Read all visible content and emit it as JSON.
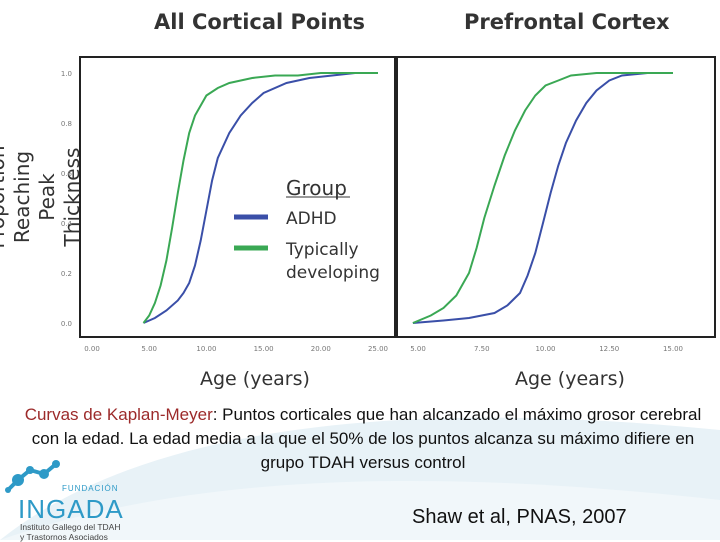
{
  "chart_data": [
    {
      "type": "line",
      "title": "All Cortical Points",
      "xlabel": "Age (years)",
      "ylabel": "Proportion Reaching Peak Thickness",
      "xlim": [
        0,
        25
      ],
      "ylim": [
        0,
        1
      ],
      "xticks": [
        "0.00",
        "5.00",
        "10.00",
        "15.00",
        "20.00",
        "25.00"
      ],
      "yticks": [
        "0.0",
        "0.2",
        "0.4",
        "0.6",
        "0.8",
        "1.0"
      ],
      "legend": {
        "title": "Group",
        "position": "center-right",
        "entries": [
          "ADHD",
          "Typically developing"
        ]
      },
      "series": [
        {
          "name": "ADHD",
          "color": "#3a4fa8",
          "x": [
            4.5,
            5.5,
            6.5,
            7.5,
            8.0,
            8.5,
            9.0,
            9.5,
            10.0,
            10.5,
            11.0,
            12.0,
            13.0,
            14.0,
            15.0,
            17.0,
            19.0,
            21.0,
            23.0,
            25.0
          ],
          "y": [
            0.0,
            0.02,
            0.05,
            0.09,
            0.12,
            0.16,
            0.23,
            0.33,
            0.45,
            0.57,
            0.66,
            0.76,
            0.83,
            0.88,
            0.92,
            0.96,
            0.98,
            0.99,
            1.0,
            1.0
          ]
        },
        {
          "name": "Typically developing",
          "color": "#3aa854",
          "x": [
            4.5,
            5.0,
            5.5,
            6.0,
            6.5,
            7.0,
            7.5,
            8.0,
            8.5,
            9.0,
            10.0,
            11.0,
            12.0,
            14.0,
            16.0,
            18.0,
            20.0,
            22.0,
            25.0
          ],
          "y": [
            0.0,
            0.03,
            0.08,
            0.15,
            0.25,
            0.38,
            0.52,
            0.65,
            0.76,
            0.83,
            0.91,
            0.94,
            0.96,
            0.98,
            0.99,
            0.99,
            1.0,
            1.0,
            1.0
          ]
        }
      ]
    },
    {
      "type": "line",
      "title": "Prefrontal Cortex",
      "xlabel": "Age (years)",
      "ylabel": "",
      "xlim": [
        5,
        15
      ],
      "ylim": [
        0,
        1
      ],
      "xticks": [
        "5.00",
        "7.50",
        "10.00",
        "12.50",
        "15.00"
      ],
      "series": [
        {
          "name": "ADHD",
          "color": "#3a4fa8",
          "x": [
            4.8,
            6.0,
            7.0,
            8.0,
            8.5,
            9.0,
            9.3,
            9.6,
            9.9,
            10.2,
            10.5,
            10.8,
            11.2,
            11.6,
            12.0,
            12.5,
            13.0,
            14.0,
            15.0
          ],
          "y": [
            0.0,
            0.01,
            0.02,
            0.04,
            0.07,
            0.12,
            0.19,
            0.28,
            0.4,
            0.52,
            0.63,
            0.72,
            0.81,
            0.88,
            0.93,
            0.97,
            0.99,
            1.0,
            1.0
          ]
        },
        {
          "name": "Typically developing",
          "color": "#3aa854",
          "x": [
            4.8,
            5.5,
            6.0,
            6.5,
            7.0,
            7.3,
            7.6,
            8.0,
            8.4,
            8.8,
            9.2,
            9.6,
            10.0,
            10.5,
            11.0,
            12.0,
            13.0,
            15.0
          ],
          "y": [
            0.0,
            0.03,
            0.06,
            0.11,
            0.2,
            0.3,
            0.42,
            0.55,
            0.67,
            0.77,
            0.85,
            0.91,
            0.95,
            0.97,
            0.99,
            1.0,
            1.0,
            1.0
          ]
        }
      ]
    }
  ],
  "caption": {
    "highlight": "Curvas de Kaplan-Meyer",
    "text": ":  Puntos corticales que han alcanzado el máximo grosor cerebral con la edad. La edad media a la que el 50% de los puntos alcanza su máximo difiere en grupo TDAH versus control"
  },
  "citation": "Shaw et al, PNAS, 2007",
  "logo": {
    "fundacion": "FUNDACIÓN",
    "name": "INGADA",
    "subtitle_1": "Instituto Gallego del TDAH",
    "subtitle_2": "y Trastornos Asociados"
  },
  "colors": {
    "adhd": "#3a4fa8",
    "typical": "#3aa854",
    "logo": "#2e9ac7"
  }
}
